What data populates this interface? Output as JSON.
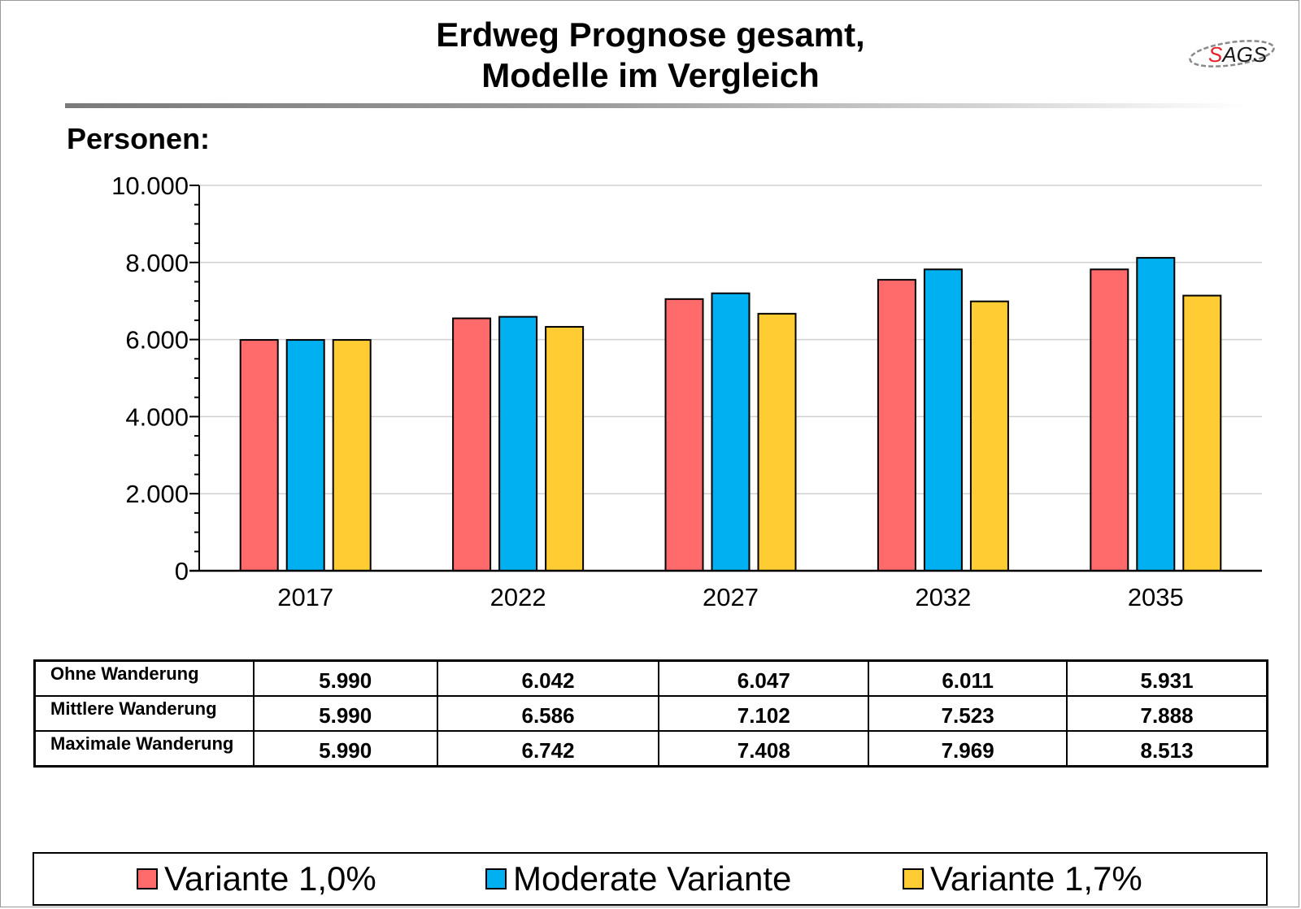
{
  "title_line1": "Erdweg Prognose gesamt,",
  "title_line2": "Modelle im Vergleich",
  "logo_text": "SAGS",
  "colors": {
    "s1": "#ff6b6b",
    "s2": "#00b0f0",
    "s3": "#ffcc33",
    "grid": "#d0d0d0"
  },
  "chart_data": {
    "type": "bar",
    "title": "Erdweg Prognose gesamt, Modelle im Vergleich",
    "ylabel": "Personen:",
    "xlabel": "",
    "categories": [
      "2017",
      "2022",
      "2027",
      "2032",
      "2035"
    ],
    "ylim": [
      0,
      10000
    ],
    "yticks": [
      "0",
      "2.000",
      "4.000",
      "6.000",
      "8.000",
      "10.000"
    ],
    "yticks_values": [
      0,
      2000,
      4000,
      6000,
      8000,
      10000
    ],
    "grid": true,
    "legend_position": "bottom",
    "series": [
      {
        "name": "Variante 1,0%",
        "values": [
          5990,
          6550,
          7050,
          7550,
          7820
        ]
      },
      {
        "name": "Moderate Variante",
        "values": [
          5990,
          6590,
          7200,
          7820,
          8120
        ]
      },
      {
        "name": "Variante 1,7%",
        "values": [
          5990,
          6330,
          6670,
          6990,
          7140
        ]
      }
    ]
  },
  "table": {
    "rows": [
      {
        "label": "Ohne Wanderung",
        "values": [
          "5.990",
          "6.042",
          "6.047",
          "6.011",
          "5.931"
        ]
      },
      {
        "label": "Mittlere Wanderung",
        "values": [
          "5.990",
          "6.586",
          "7.102",
          "7.523",
          "7.888"
        ]
      },
      {
        "label": "Maximale Wanderung",
        "values": [
          "5.990",
          "6.742",
          "7.408",
          "7.969",
          "8.513"
        ]
      }
    ]
  }
}
